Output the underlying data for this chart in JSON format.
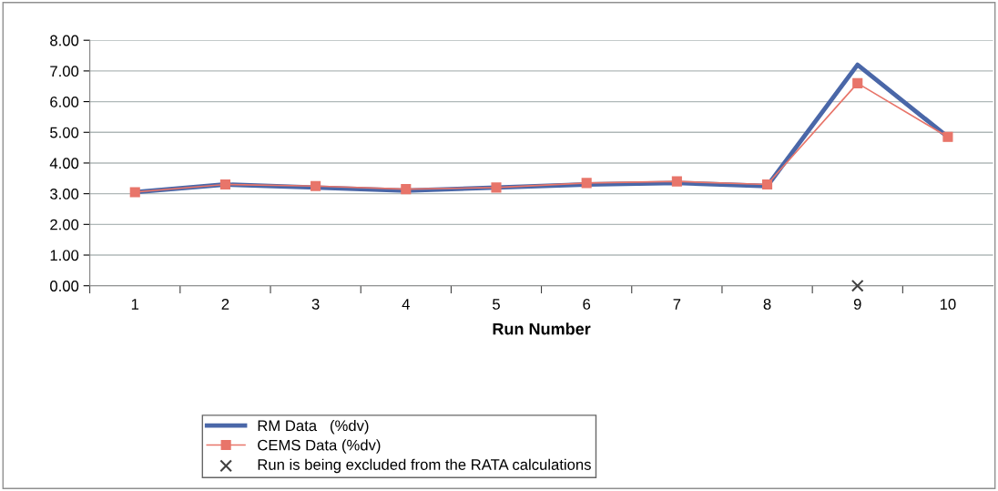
{
  "chart_data": {
    "type": "line",
    "xlabel": "Run Number",
    "categories": [
      "1",
      "2",
      "3",
      "4",
      "5",
      "6",
      "7",
      "8",
      "9",
      "10"
    ],
    "ylim": [
      0,
      8
    ],
    "yticks": [
      {
        "value": 0,
        "label": "0.00"
      },
      {
        "value": 1,
        "label": "1.00"
      },
      {
        "value": 2,
        "label": "2.00"
      },
      {
        "value": 3,
        "label": "3.00"
      },
      {
        "value": 4,
        "label": "4.00"
      },
      {
        "value": 5,
        "label": "5.00"
      },
      {
        "value": 6,
        "label": "6.00"
      },
      {
        "value": 7,
        "label": "7.00"
      },
      {
        "value": 8,
        "label": "8.00"
      }
    ],
    "grid": "y",
    "legend": "bottom",
    "series": [
      {
        "name": "RM Data   (%dv)",
        "color": "#4a67a8",
        "marker": "none",
        "values": [
          3.05,
          3.3,
          3.2,
          3.1,
          3.2,
          3.3,
          3.35,
          3.25,
          7.2,
          4.85
        ]
      },
      {
        "name": "CEMS Data (%dv)",
        "color": "#e8756a",
        "marker": "square",
        "values": [
          3.05,
          3.3,
          3.25,
          3.15,
          3.2,
          3.35,
          3.4,
          3.3,
          6.6,
          4.85
        ]
      },
      {
        "name": "Run is being excluded from the RATA calculations",
        "type": "scatter",
        "color": "#404040",
        "marker": "cross",
        "x": [
          "9"
        ],
        "values": [
          0
        ]
      }
    ]
  }
}
